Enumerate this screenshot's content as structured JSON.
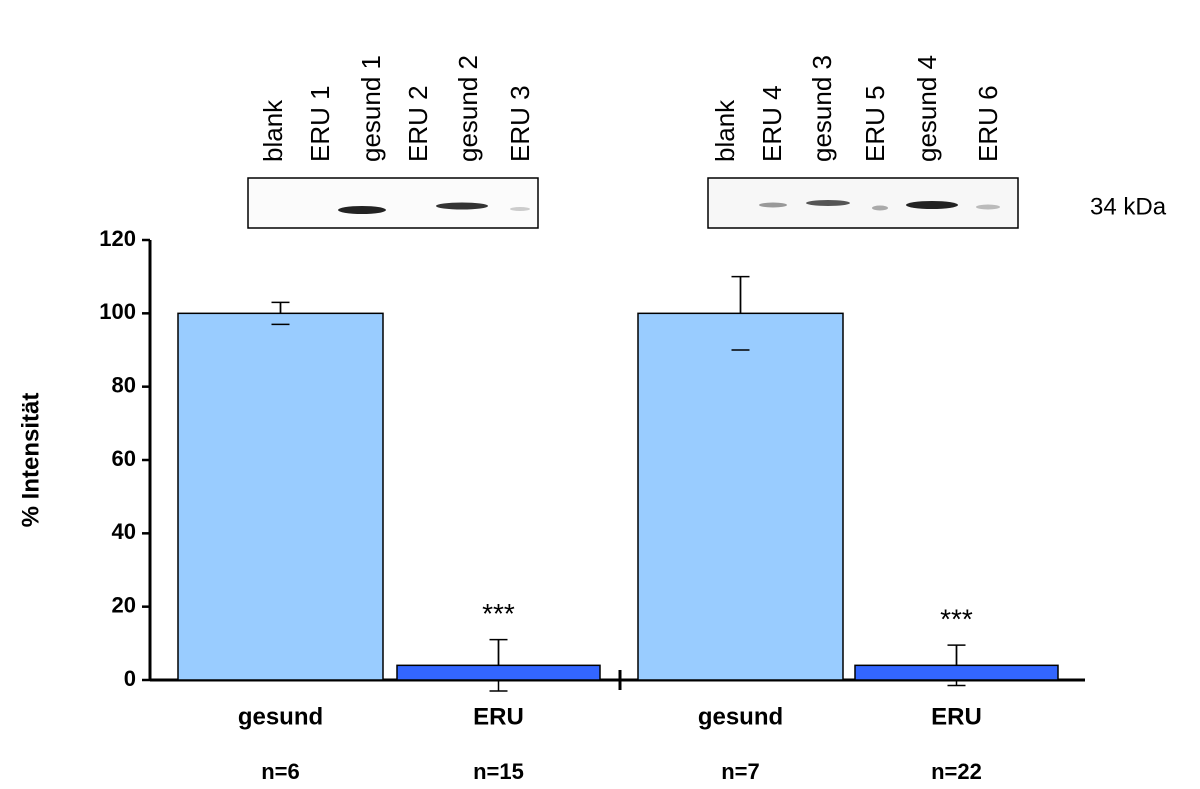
{
  "chart_data": {
    "type": "bar",
    "y_label": "% Intensität",
    "categories": [
      "gesund",
      "ERU",
      "gesund",
      "ERU"
    ],
    "sample_sizes": [
      "n=6",
      "n=15",
      "n=7",
      "n=22"
    ],
    "values": [
      100,
      4,
      100,
      4
    ],
    "errors": [
      3,
      7,
      10,
      5.5
    ],
    "colors": [
      "#99ccff",
      "#3366ff",
      "#99ccff",
      "#3366ff"
    ],
    "annotations": [
      null,
      "***",
      null,
      "***"
    ],
    "ylim": [
      0,
      120
    ],
    "yticks": [
      0,
      20,
      40,
      60,
      80,
      100,
      120
    ],
    "blot_lanes": [
      [
        "blank",
        "ERU 1",
        "gesund 1",
        "ERU 2",
        "gesund 2",
        "ERU 3"
      ],
      [
        "blank",
        "ERU 4",
        "gesund 3",
        "ERU 5",
        "gesund 4",
        "ERU 6"
      ]
    ],
    "blot_marker": "34 kDa"
  }
}
